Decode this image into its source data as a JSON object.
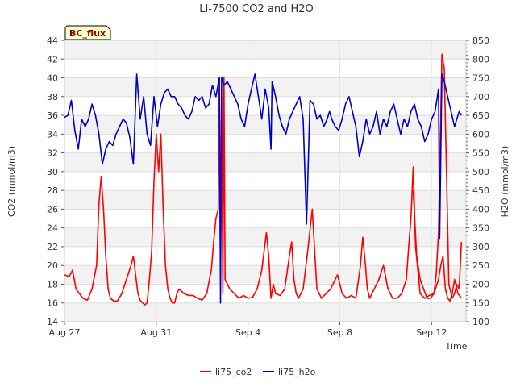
{
  "chart_data": {
    "type": "line",
    "title": "LI-7500 CO2 and H2O",
    "badge": "BC_flux",
    "xlabel": "Time",
    "ylabel_left": "CO2 (mmol/m3)",
    "ylabel_right": "H2O (mmol/m3)",
    "x_ticks": [
      "Aug 27",
      "Aug 31",
      "Sep 4",
      "Sep 8",
      "Sep 12"
    ],
    "x_tick_days": [
      0,
      4,
      8,
      12,
      16
    ],
    "xlim": [
      0,
      17.5
    ],
    "ylim_left": [
      14,
      44
    ],
    "ylim_right": [
      100,
      850
    ],
    "yticks_left": [
      14,
      16,
      18,
      20,
      22,
      24,
      26,
      28,
      30,
      32,
      34,
      36,
      38,
      40,
      42,
      44
    ],
    "yticks_right": [
      100,
      150,
      200,
      250,
      300,
      350,
      400,
      450,
      500,
      550,
      600,
      650,
      700,
      750,
      800,
      850
    ],
    "grid": true,
    "legend_position": "bottom-center",
    "colors": {
      "li75_co2": "#ff0000",
      "li75_h2o": "#0000cc",
      "band": "#f2f2f2",
      "badge_bg": "#ffffcc"
    },
    "series": [
      {
        "name": "li75_co2",
        "axis": "left",
        "x": [
          0.0,
          0.2,
          0.35,
          0.5,
          0.65,
          0.8,
          1.0,
          1.2,
          1.4,
          1.5,
          1.6,
          1.7,
          1.8,
          1.9,
          2.0,
          2.15,
          2.3,
          2.5,
          2.7,
          2.9,
          3.0,
          3.1,
          3.2,
          3.3,
          3.4,
          3.5,
          3.6,
          3.7,
          3.8,
          3.9,
          4.0,
          4.1,
          4.2,
          4.3,
          4.4,
          4.5,
          4.6,
          4.7,
          4.8,
          4.9,
          5.0,
          5.2,
          5.4,
          5.6,
          5.8,
          6.0,
          6.2,
          6.4,
          6.5,
          6.6,
          6.7,
          6.75,
          6.8,
          6.85,
          6.9,
          6.95,
          7.0,
          7.2,
          7.4,
          7.6,
          7.8,
          8.0,
          8.2,
          8.4,
          8.6,
          8.8,
          8.9,
          9.0,
          9.1,
          9.2,
          9.4,
          9.6,
          9.8,
          9.9,
          10.0,
          10.1,
          10.2,
          10.4,
          10.6,
          10.8,
          11.0,
          11.2,
          11.4,
          11.6,
          11.8,
          11.9,
          12.0,
          12.1,
          12.3,
          12.5,
          12.7,
          12.9,
          13.0,
          13.1,
          13.2,
          13.3,
          13.5,
          13.7,
          13.9,
          14.1,
          14.3,
          14.5,
          14.7,
          14.9,
          15.0,
          15.1,
          15.2,
          15.3,
          15.5,
          15.7,
          15.9,
          16.1,
          16.3,
          16.4,
          16.5,
          16.6,
          16.7,
          16.8,
          16.9,
          17.0,
          17.15,
          17.3
        ],
        "values": [
          19.0,
          18.8,
          19.5,
          17.5,
          17.0,
          16.5,
          16.3,
          17.5,
          20.0,
          26.5,
          29.5,
          26.0,
          21.0,
          17.5,
          16.5,
          16.2,
          16.2,
          17.0,
          18.5,
          20.0,
          21.0,
          19.0,
          17.0,
          16.3,
          16.0,
          15.8,
          16.0,
          18.5,
          21.5,
          29.0,
          34.0,
          30.0,
          34.0,
          26.0,
          20.0,
          17.5,
          16.5,
          16.0,
          16.0,
          17.0,
          17.5,
          17.0,
          16.8,
          16.8,
          16.5,
          16.3,
          17.0,
          19.5,
          22.5,
          25.0,
          26.0,
          40.0,
          18.5,
          38.0,
          17.0,
          40.0,
          18.5,
          17.5,
          17.0,
          16.5,
          16.8,
          16.5,
          16.6,
          17.5,
          19.5,
          23.5,
          21.0,
          16.5,
          18.0,
          17.0,
          16.8,
          17.5,
          21.0,
          22.5,
          18.5,
          17.0,
          16.5,
          17.5,
          21.5,
          26.0,
          17.5,
          16.5,
          17.0,
          17.5,
          18.5,
          19.0,
          18.0,
          17.0,
          16.5,
          16.8,
          16.5,
          20.0,
          23.0,
          20.5,
          17.5,
          16.5,
          17.5,
          18.5,
          20.0,
          17.5,
          16.5,
          16.5,
          17.0,
          18.5,
          22.0,
          25.0,
          30.5,
          22.0,
          17.0,
          16.5,
          16.8,
          17.0,
          18.5,
          20.0,
          21.0,
          17.5,
          16.5,
          16.2,
          17.0,
          18.5,
          17.0,
          16.5
        ],
        "x2": [
          15.2,
          15.35,
          15.5,
          15.65,
          15.8,
          15.95,
          16.1,
          16.2,
          16.3,
          16.4,
          16.45,
          16.55,
          16.65,
          16.75,
          16.9,
          17.0,
          17.1,
          17.2,
          17.3
        ],
        "values2": [
          28.0,
          21.0,
          18.5,
          17.5,
          16.5,
          16.5,
          17.0,
          19.0,
          23.5,
          36.0,
          42.5,
          41.0,
          30.0,
          18.0,
          16.5,
          17.0,
          18.0,
          17.5,
          22.5
        ]
      },
      {
        "name": "li75_h2o",
        "axis": "right",
        "x": [
          0.0,
          0.15,
          0.3,
          0.45,
          0.6,
          0.75,
          0.9,
          1.05,
          1.2,
          1.35,
          1.5,
          1.65,
          1.8,
          1.95,
          2.1,
          2.25,
          2.4,
          2.55,
          2.7,
          2.85,
          3.0,
          3.15,
          3.3,
          3.45,
          3.6,
          3.75,
          3.9,
          4.05,
          4.2,
          4.35,
          4.5,
          4.65,
          4.8,
          4.95,
          5.1,
          5.25,
          5.4,
          5.55,
          5.7,
          5.85,
          6.0,
          6.15,
          6.3,
          6.45,
          6.6,
          6.75,
          6.8,
          6.85,
          6.95,
          7.1,
          7.25,
          7.4,
          7.55,
          7.7,
          7.85,
          8.0,
          8.15,
          8.3,
          8.45,
          8.6,
          8.75,
          8.9,
          9.0,
          9.05,
          9.2,
          9.35,
          9.5,
          9.65,
          9.8,
          9.95,
          10.1,
          10.25,
          10.4,
          10.55,
          10.7,
          10.85,
          11.0,
          11.15,
          11.3,
          11.45,
          11.55,
          11.65,
          11.8,
          11.95,
          12.1,
          12.25,
          12.4,
          12.55,
          12.7,
          12.85,
          13.0,
          13.15,
          13.3,
          13.45,
          13.6,
          13.75,
          13.9,
          14.05,
          14.2,
          14.35,
          14.5,
          14.65,
          14.8,
          14.95,
          15.1,
          15.25,
          15.4,
          15.55,
          15.7,
          15.85,
          16.0,
          16.15,
          16.3,
          16.35,
          16.45,
          16.55,
          16.7,
          16.85,
          17.0,
          17.1,
          17.2,
          17.3
        ],
        "values": [
          645,
          650,
          690,
          610,
          560,
          640,
          620,
          640,
          680,
          650,
          600,
          520,
          560,
          580,
          570,
          600,
          620,
          640,
          630,
          590,
          520,
          760,
          640,
          700,
          600,
          570,
          700,
          620,
          680,
          710,
          720,
          700,
          700,
          680,
          670,
          650,
          640,
          660,
          700,
          690,
          700,
          670,
          680,
          730,
          700,
          750,
          150,
          750,
          730,
          740,
          720,
          700,
          680,
          640,
          620,
          680,
          720,
          760,
          700,
          640,
          720,
          670,
          560,
          740,
          700,
          650,
          620,
          600,
          640,
          660,
          680,
          700,
          640,
          360,
          690,
          680,
          640,
          650,
          620,
          640,
          660,
          640,
          620,
          610,
          640,
          680,
          700,
          660,
          620,
          540,
          580,
          640,
          600,
          620,
          660,
          600,
          640,
          620,
          660,
          680,
          640,
          600,
          640,
          620,
          660,
          680,
          640,
          620,
          580,
          600,
          640,
          660,
          720,
          320,
          760,
          740,
          700,
          660,
          620,
          640,
          660,
          650
        ]
      }
    ]
  }
}
